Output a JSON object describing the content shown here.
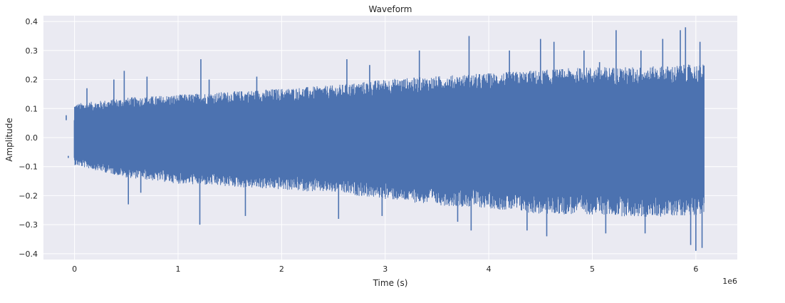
{
  "chart_data": {
    "type": "line",
    "title": "Waveform",
    "xlabel": "Time (s)",
    "ylabel": "Amplitude",
    "x_offset_text": "1e6",
    "xlim": [
      -300000,
      6400000
    ],
    "ylim": [
      -0.42,
      0.42
    ],
    "x_ticks": [
      0,
      1000000,
      2000000,
      3000000,
      4000000,
      5000000,
      6000000
    ],
    "x_tick_labels": [
      "0",
      "1",
      "2",
      "3",
      "4",
      "5",
      "6"
    ],
    "y_ticks": [
      -0.4,
      -0.3,
      -0.2,
      -0.1,
      0.0,
      0.1,
      0.2,
      0.3,
      0.4
    ],
    "y_tick_labels": [
      "−0.4",
      "−0.3",
      "−0.2",
      "−0.1",
      "0.0",
      "0.1",
      "0.2",
      "0.3",
      "0.4"
    ],
    "grid": true,
    "series": [
      {
        "color": "#4c72b0",
        "x_range": [
          0,
          6080000
        ],
        "envelope": {
          "x": [
            0,
            500000,
            1000000,
            1500000,
            2000000,
            2500000,
            3000000,
            3500000,
            4000000,
            4500000,
            5000000,
            5500000,
            6080000
          ],
          "upper": [
            0.11,
            0.13,
            0.14,
            0.15,
            0.16,
            0.17,
            0.19,
            0.2,
            0.21,
            0.22,
            0.23,
            0.23,
            0.24
          ],
          "lower": [
            -0.09,
            -0.13,
            -0.15,
            -0.16,
            -0.17,
            -0.18,
            -0.2,
            -0.22,
            -0.23,
            -0.25,
            -0.25,
            -0.26,
            -0.25
          ]
        },
        "peaks": [
          [
            -80000,
            0.06
          ],
          [
            -60000,
            -0.07
          ],
          [
            120000,
            0.17
          ],
          [
            380000,
            0.2
          ],
          [
            480000,
            0.23
          ],
          [
            520000,
            -0.23
          ],
          [
            640000,
            -0.19
          ],
          [
            700000,
            0.21
          ],
          [
            1220000,
            0.27
          ],
          [
            1210000,
            -0.3
          ],
          [
            1300000,
            0.2
          ],
          [
            1650000,
            -0.27
          ],
          [
            1760000,
            0.21
          ],
          [
            2550000,
            -0.28
          ],
          [
            2630000,
            0.27
          ],
          [
            2850000,
            0.25
          ],
          [
            2970000,
            -0.27
          ],
          [
            3330000,
            0.3
          ],
          [
            3810000,
            0.35
          ],
          [
            3700000,
            -0.29
          ],
          [
            3830000,
            -0.32
          ],
          [
            4200000,
            0.3
          ],
          [
            4370000,
            -0.32
          ],
          [
            4500000,
            0.34
          ],
          [
            4560000,
            -0.34
          ],
          [
            4630000,
            0.33
          ],
          [
            4920000,
            0.3
          ],
          [
            5070000,
            0.26
          ],
          [
            5130000,
            -0.33
          ],
          [
            5230000,
            0.37
          ],
          [
            5470000,
            0.3
          ],
          [
            5510000,
            -0.33
          ],
          [
            5680000,
            0.34
          ],
          [
            5850000,
            0.37
          ],
          [
            5900000,
            0.38
          ],
          [
            5950000,
            -0.37
          ],
          [
            6000000,
            -0.39
          ],
          [
            6040000,
            0.33
          ],
          [
            6060000,
            -0.38
          ]
        ]
      }
    ]
  }
}
